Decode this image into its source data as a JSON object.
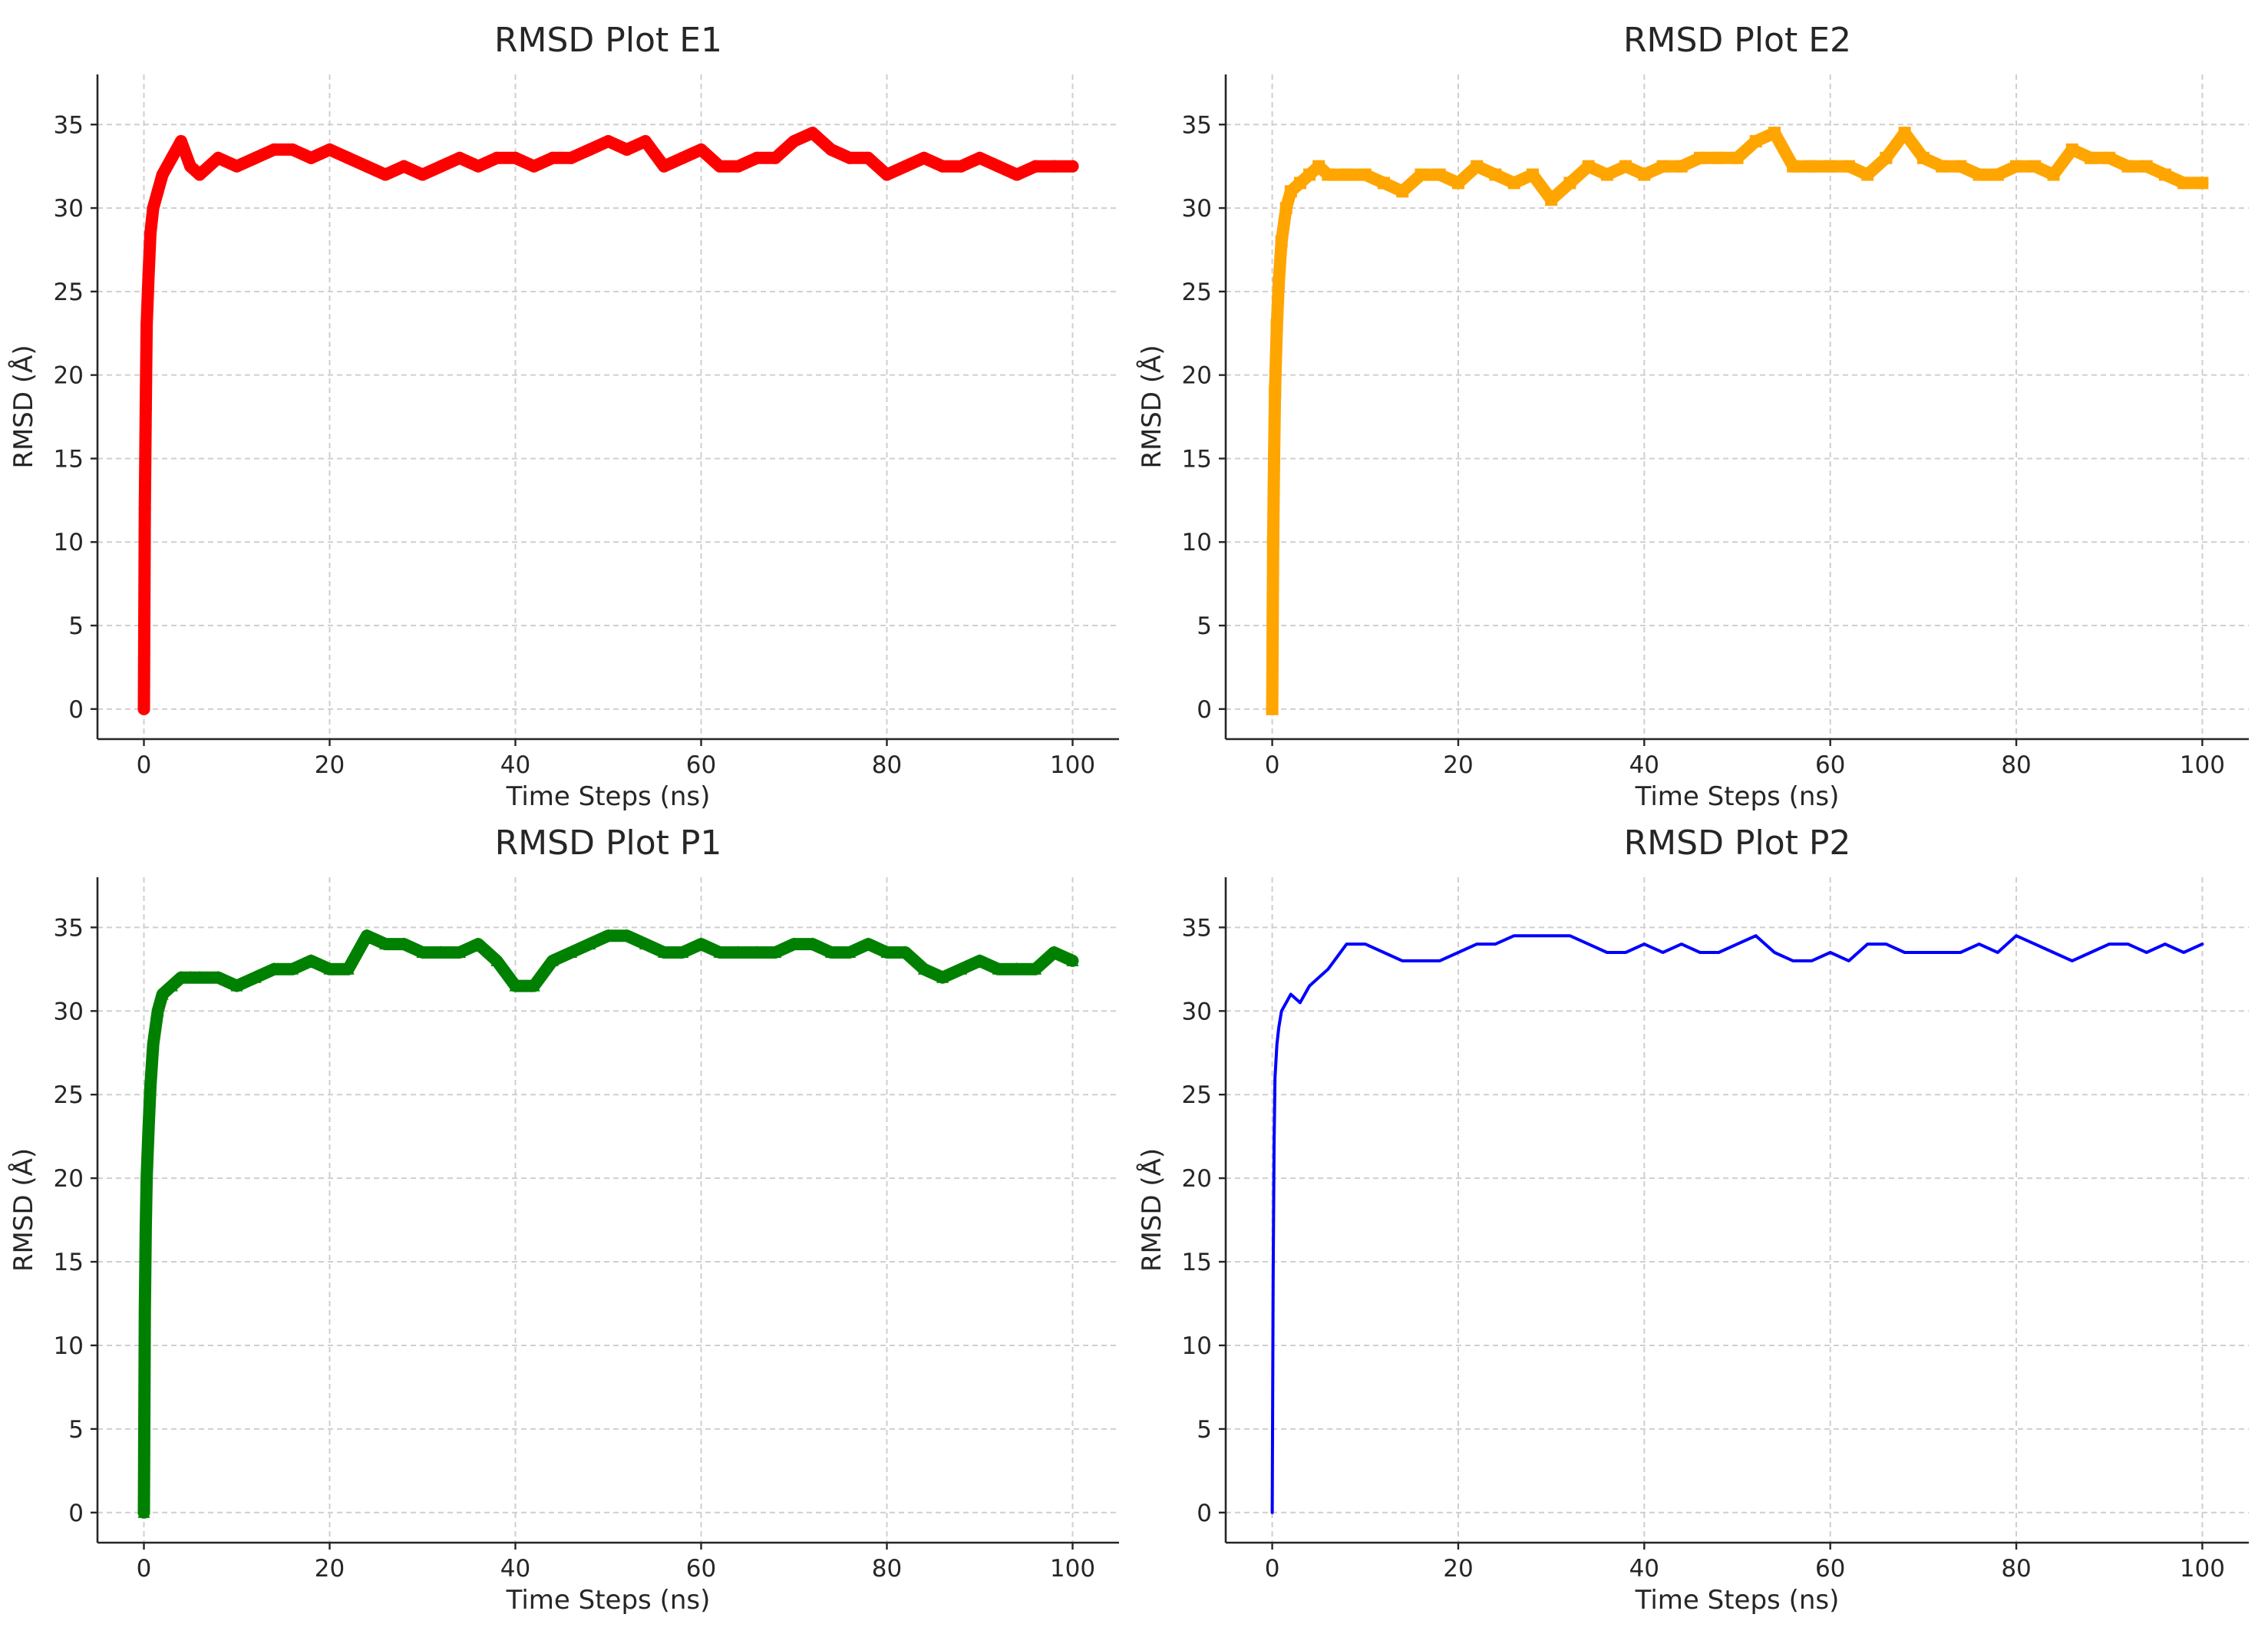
{
  "figure": {
    "layout": "2x2 grid of RMSD line charts"
  },
  "chart_data": [
    {
      "id": "e1",
      "type": "line",
      "title": "RMSD Plot E1",
      "xlabel": "Time Steps (ns)",
      "ylabel": "RMSD (Å)",
      "xlim": [
        -5,
        105
      ],
      "ylim": [
        -1.8,
        38
      ],
      "x_ticks": [
        0,
        20,
        40,
        60,
        80,
        100
      ],
      "y_ticks": [
        0,
        5,
        10,
        15,
        20,
        25,
        30,
        35
      ],
      "x_tick_labels": [
        "0",
        "20",
        "40",
        "60",
        "80",
        "100"
      ],
      "y_tick_labels": [
        "0",
        "5",
        "10",
        "15",
        "20",
        "25",
        "30",
        "35"
      ],
      "grid": true,
      "series": [
        {
          "color": "#ff0000",
          "marker": "circle",
          "x": [
            0,
            0.1,
            0.2,
            0.3,
            0.5,
            0.7,
            1.0,
            1.5,
            2,
            3,
            4,
            5,
            6,
            8,
            10,
            12,
            14,
            16,
            18,
            20,
            22,
            24,
            26,
            28,
            30,
            32,
            34,
            36,
            38,
            40,
            42,
            44,
            46,
            48,
            50,
            52,
            54,
            56,
            58,
            60,
            62,
            64,
            66,
            68,
            70,
            72,
            74,
            76,
            78,
            80,
            82,
            84,
            86,
            88,
            90,
            92,
            94,
            96,
            98,
            100
          ],
          "y": [
            0,
            12,
            18,
            23,
            26,
            28.5,
            30,
            31,
            32,
            33,
            34,
            32.5,
            32,
            33,
            32.5,
            33,
            33.5,
            33.5,
            33,
            33.5,
            33,
            32.5,
            32,
            32.5,
            32,
            32.5,
            33,
            32.5,
            33,
            33,
            32.5,
            33,
            33,
            33.5,
            34,
            33.5,
            34,
            32.5,
            33,
            33.5,
            32.5,
            32.5,
            33,
            33,
            34,
            34.5,
            33.5,
            33,
            33,
            32,
            32.5,
            33,
            32.5,
            32.5,
            33,
            32.5,
            32,
            32.5,
            32.5,
            32.5
          ]
        }
      ]
    },
    {
      "id": "e2",
      "type": "line",
      "title": "RMSD Plot E2",
      "xlabel": "Time Steps (ns)",
      "ylabel": "RMSD (Å)",
      "xlim": [
        -5,
        105
      ],
      "ylim": [
        -1.8,
        38
      ],
      "x_ticks": [
        0,
        20,
        40,
        60,
        80,
        100
      ],
      "y_ticks": [
        0,
        5,
        10,
        15,
        20,
        25,
        30,
        35
      ],
      "x_tick_labels": [
        "0",
        "20",
        "40",
        "60",
        "80",
        "100"
      ],
      "y_tick_labels": [
        "0",
        "5",
        "10",
        "15",
        "20",
        "25",
        "30",
        "35"
      ],
      "grid": true,
      "series": [
        {
          "color": "#ffa500",
          "marker": "square",
          "x": [
            0,
            0.1,
            0.2,
            0.3,
            0.5,
            0.7,
            1.0,
            1.5,
            2,
            3,
            4,
            5,
            6,
            8,
            10,
            12,
            14,
            16,
            18,
            20,
            22,
            24,
            26,
            28,
            30,
            32,
            34,
            36,
            38,
            40,
            42,
            44,
            46,
            48,
            50,
            52,
            54,
            56,
            58,
            60,
            62,
            64,
            66,
            68,
            70,
            72,
            74,
            76,
            78,
            80,
            82,
            84,
            86,
            88,
            90,
            92,
            94,
            96,
            98,
            100
          ],
          "y": [
            0,
            10,
            15,
            19,
            23,
            25.5,
            28,
            30,
            31,
            31.5,
            32,
            32.5,
            32,
            32,
            32,
            31.5,
            31,
            32,
            32,
            31.5,
            32.5,
            32,
            31.5,
            32,
            30.5,
            31.5,
            32.5,
            32,
            32.5,
            32,
            32.5,
            32.5,
            33,
            33,
            33,
            34,
            34.5,
            32.5,
            32.5,
            32.5,
            32.5,
            32,
            33,
            34.5,
            33,
            32.5,
            32.5,
            32,
            32,
            32.5,
            32.5,
            32,
            33.5,
            33,
            33,
            32.5,
            32.5,
            32,
            31.5,
            31.5
          ]
        }
      ]
    },
    {
      "id": "p1",
      "type": "line",
      "title": "RMSD Plot P1",
      "xlabel": "Time Steps (ns)",
      "ylabel": "RMSD (Å)",
      "xlim": [
        -5,
        105
      ],
      "ylim": [
        -1.8,
        38
      ],
      "x_ticks": [
        0,
        20,
        40,
        60,
        80,
        100
      ],
      "y_ticks": [
        0,
        5,
        10,
        15,
        20,
        25,
        30,
        35
      ],
      "x_tick_labels": [
        "0",
        "20",
        "40",
        "60",
        "80",
        "100"
      ],
      "y_tick_labels": [
        "0",
        "5",
        "10",
        "15",
        "20",
        "25",
        "30",
        "35"
      ],
      "grid": true,
      "series": [
        {
          "color": "#008000",
          "marker": "triangle",
          "x": [
            0,
            0.1,
            0.2,
            0.3,
            0.5,
            0.7,
            1.0,
            1.5,
            2,
            3,
            4,
            5,
            6,
            8,
            10,
            12,
            14,
            16,
            18,
            20,
            22,
            24,
            26,
            28,
            30,
            32,
            34,
            36,
            38,
            40,
            42,
            44,
            46,
            48,
            50,
            52,
            54,
            56,
            58,
            60,
            62,
            64,
            66,
            68,
            70,
            72,
            74,
            76,
            78,
            80,
            82,
            84,
            86,
            88,
            90,
            92,
            94,
            96,
            98,
            100
          ],
          "y": [
            0,
            12,
            17,
            20,
            23,
            25.5,
            28,
            30,
            31,
            31.5,
            32,
            32,
            32,
            32,
            31.5,
            32,
            32.5,
            32.5,
            33,
            32.5,
            32.5,
            34.5,
            34,
            34,
            33.5,
            33.5,
            33.5,
            34,
            33,
            31.5,
            31.5,
            33,
            33.5,
            34,
            34.5,
            34.5,
            34,
            33.5,
            33.5,
            34,
            33.5,
            33.5,
            33.5,
            33.5,
            34,
            34,
            33.5,
            33.5,
            34,
            33.5,
            33.5,
            32.5,
            32,
            32.5,
            33,
            32.5,
            32.5,
            32.5,
            33.5,
            33
          ]
        }
      ]
    },
    {
      "id": "p2",
      "type": "line",
      "title": "RMSD Plot P2",
      "xlabel": "Time Steps (ns)",
      "ylabel": "RMSD (Å)",
      "xlim": [
        -5,
        105
      ],
      "ylim": [
        -1.8,
        38
      ],
      "x_ticks": [
        0,
        20,
        40,
        60,
        80,
        100
      ],
      "y_ticks": [
        0,
        5,
        10,
        15,
        20,
        25,
        30,
        35
      ],
      "x_tick_labels": [
        "0",
        "20",
        "40",
        "60",
        "80",
        "100"
      ],
      "y_tick_labels": [
        "0",
        "5",
        "10",
        "15",
        "20",
        "25",
        "30",
        "35"
      ],
      "grid": true,
      "series": [
        {
          "color": "#0000ff",
          "marker": "none",
          "x": [
            0,
            0.1,
            0.2,
            0.3,
            0.5,
            0.7,
            1.0,
            1.5,
            2,
            3,
            4,
            5,
            6,
            8,
            10,
            12,
            14,
            16,
            18,
            20,
            22,
            24,
            26,
            28,
            30,
            32,
            34,
            36,
            38,
            40,
            42,
            44,
            46,
            48,
            50,
            52,
            54,
            56,
            58,
            60,
            62,
            64,
            66,
            68,
            70,
            72,
            74,
            76,
            78,
            80,
            82,
            84,
            86,
            88,
            90,
            92,
            94,
            96,
            98,
            100
          ],
          "y": [
            0,
            14,
            22,
            26,
            28,
            29,
            30,
            30.5,
            31,
            30.5,
            31.5,
            32,
            32.5,
            34,
            34,
            33.5,
            33,
            33,
            33,
            33.5,
            34,
            34,
            34.5,
            34.5,
            34.5,
            34.5,
            34,
            33.5,
            33.5,
            34,
            33.5,
            34,
            33.5,
            33.5,
            34,
            34.5,
            33.5,
            33,
            33,
            33.5,
            33,
            34,
            34,
            33.5,
            33.5,
            33.5,
            33.5,
            34,
            33.5,
            34.5,
            34,
            33.5,
            33,
            33.5,
            34,
            34,
            33.5,
            34,
            33.5,
            34
          ]
        }
      ]
    }
  ]
}
